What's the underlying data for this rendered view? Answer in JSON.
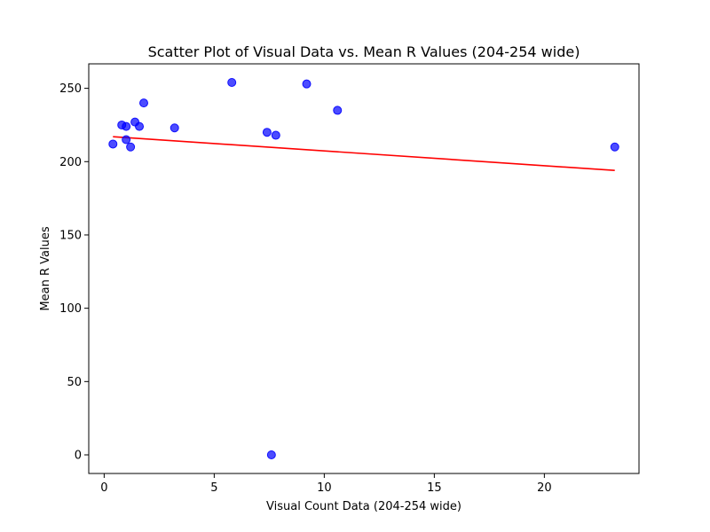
{
  "chart_data": {
    "type": "scatter",
    "title": "Scatter Plot of Visual Data vs. Mean R Values (204-254 wide)",
    "xlabel": "Visual Count Data (204-254 wide)",
    "ylabel": "Mean R Values",
    "xlim": [
      -0.7,
      24.3
    ],
    "ylim": [
      -12.7,
      266.7
    ],
    "xticks": [
      0,
      5,
      10,
      15,
      20
    ],
    "yticks": [
      0,
      50,
      100,
      150,
      200,
      250
    ],
    "xtick_labels": [
      "0",
      "5",
      "10",
      "15",
      "20"
    ],
    "ytick_labels": [
      "0",
      "50",
      "100",
      "150",
      "200",
      "250"
    ],
    "grid": false,
    "points": {
      "color": "#0000ff",
      "x": [
        0.4,
        0.8,
        1.0,
        1.0,
        1.2,
        1.4,
        1.6,
        1.8,
        3.2,
        5.8,
        7.4,
        7.6,
        7.8,
        9.2,
        10.6,
        23.2
      ],
      "y": [
        212,
        225,
        215,
        224,
        210,
        227,
        224,
        240,
        223,
        254,
        220,
        0,
        218,
        253,
        235,
        210
      ]
    },
    "trendline": {
      "color": "#ff0000",
      "x": [
        0.4,
        23.2
      ],
      "y": [
        217,
        194
      ]
    }
  }
}
